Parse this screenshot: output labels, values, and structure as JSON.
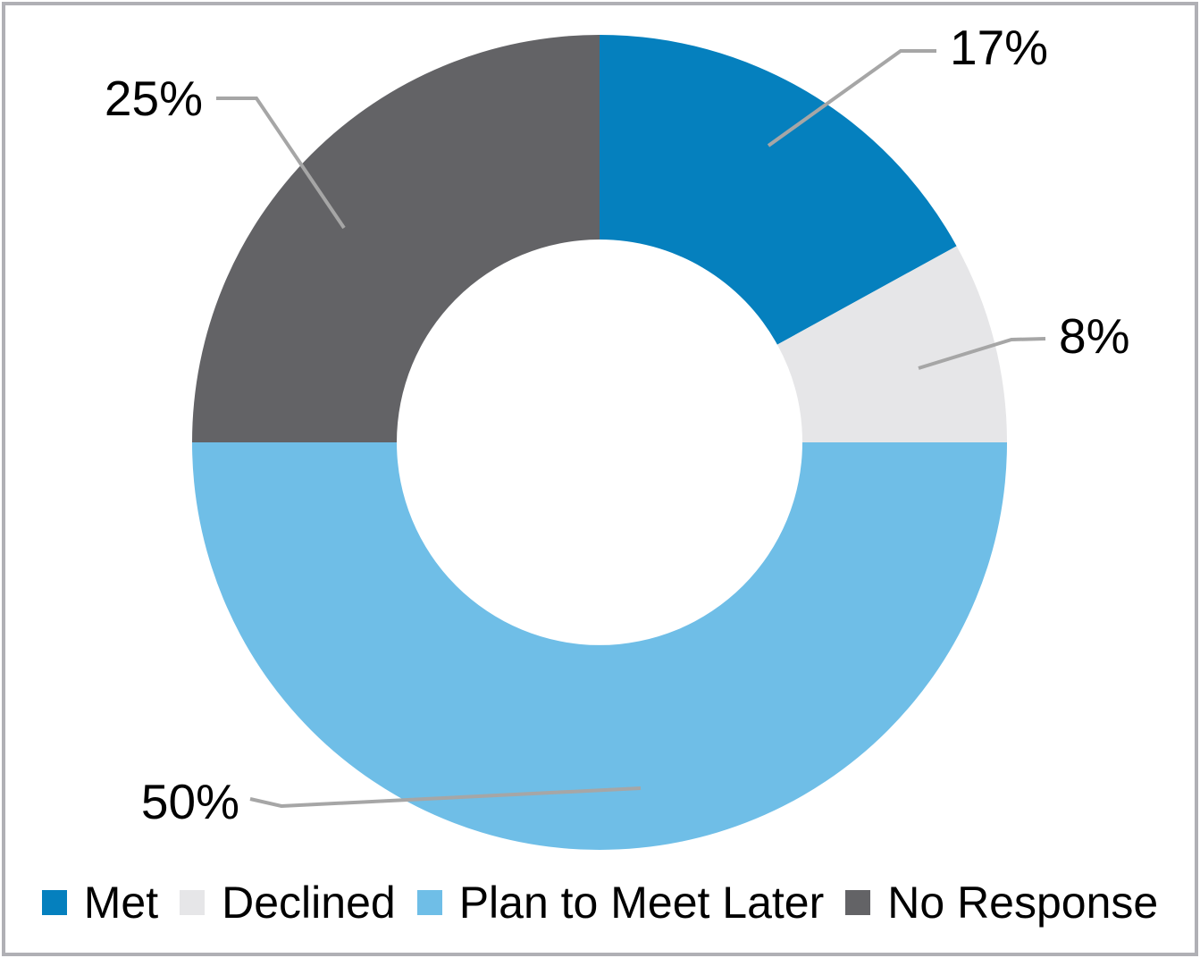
{
  "chart_data": {
    "type": "pie",
    "subtype": "donut",
    "title": "",
    "categories": [
      "Met",
      "Declined",
      "Plan to Meet Later",
      "No Response"
    ],
    "values": [
      17,
      8,
      50,
      25
    ],
    "data_labels": [
      "17%",
      "8%",
      "50%",
      "25%"
    ],
    "colors": [
      "#0580BE",
      "#E6E6E8",
      "#6FBEE7",
      "#636366"
    ],
    "start_angle_deg": 0,
    "clockwise": true,
    "inner_radius_ratio": 0.5,
    "legend_position": "bottom",
    "leader_line_color": "#A6A6A6",
    "label_text_color": "#000000",
    "frame_border_color": "#B0B0B5",
    "background_color": "#FFFFFF"
  }
}
